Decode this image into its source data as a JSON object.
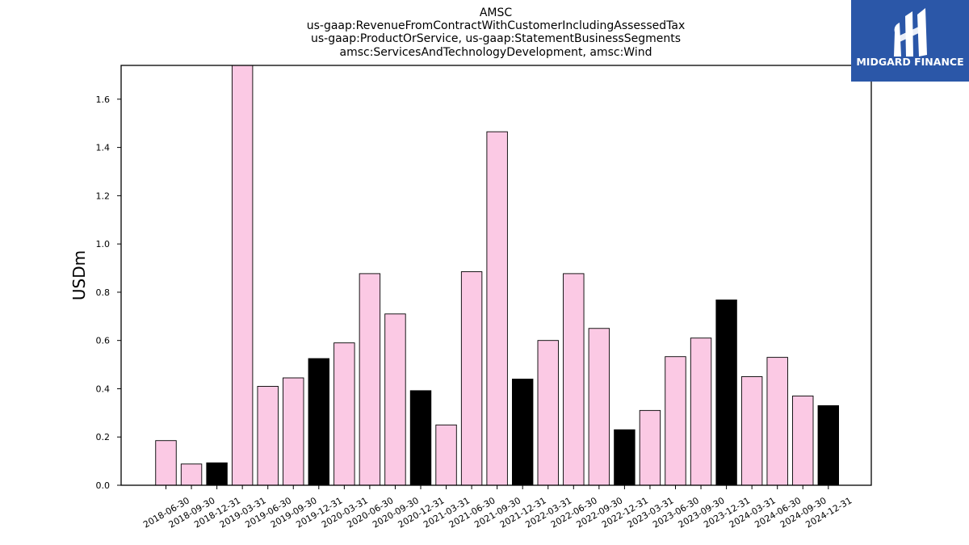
{
  "logo": {
    "text": "MIDGARD FINANCE",
    "background": "#2b57a8"
  },
  "colors": {
    "pink_bar": "#fbc9e4",
    "black_bar": "#000000",
    "bar_edge": "#000000"
  },
  "chart_data": {
    "type": "bar",
    "title_lines": [
      "AMSC",
      "us-gaap:RevenueFromContractWithCustomerIncludingAssessedTax",
      "us-gaap:ProductOrService, us-gaap:StatementBusinessSegments",
      "amsc:ServicesAndTechnologyDevelopment, amsc:Wind"
    ],
    "xlabel": "",
    "ylabel": "USDm",
    "ylim": [
      0,
      1.74
    ],
    "yticks": [
      0.0,
      0.2,
      0.4,
      0.6,
      0.8,
      1.0,
      1.2,
      1.4,
      1.6
    ],
    "ytick_labels": [
      "0.0",
      "0.2",
      "0.4",
      "0.6",
      "0.8",
      "1.0",
      "1.2",
      "1.4",
      "1.6"
    ],
    "grid": false,
    "categories": [
      "2018-06-30",
      "2018-09-30",
      "2018-12-31",
      "2019-03-31",
      "2019-06-30",
      "2019-09-30",
      "2019-12-31",
      "2020-03-31",
      "2020-06-30",
      "2020-09-30",
      "2020-12-31",
      "2021-03-31",
      "2021-06-30",
      "2021-09-30",
      "2021-12-31",
      "2022-03-31",
      "2022-06-30",
      "2022-09-30",
      "2022-12-31",
      "2023-03-31",
      "2023-06-30",
      "2023-09-30",
      "2023-12-31",
      "2024-03-31",
      "2024-06-30",
      "2024-09-30",
      "2024-12-31"
    ],
    "values": [
      0.185,
      0.088,
      0.093,
      1.74,
      0.41,
      0.445,
      0.525,
      0.59,
      0.877,
      0.71,
      0.392,
      0.25,
      0.885,
      1.465,
      0.44,
      0.6,
      0.877,
      0.65,
      0.23,
      0.31,
      0.533,
      0.61,
      0.768,
      0.45,
      0.53,
      0.37,
      0.33
    ],
    "bar_colors": [
      "pink",
      "pink",
      "black",
      "pink",
      "pink",
      "pink",
      "black",
      "pink",
      "pink",
      "pink",
      "black",
      "pink",
      "pink",
      "pink",
      "black",
      "pink",
      "pink",
      "pink",
      "black",
      "pink",
      "pink",
      "pink",
      "black",
      "pink",
      "pink",
      "pink",
      "black"
    ]
  }
}
